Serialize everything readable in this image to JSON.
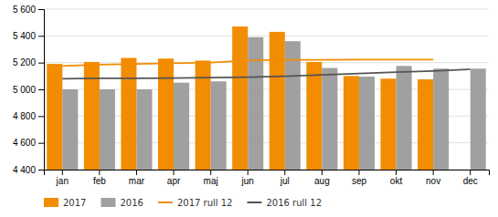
{
  "chart_data": {
    "type": "bar",
    "categories": [
      "jan",
      "feb",
      "mar",
      "apr",
      "maj",
      "jun",
      "jul",
      "aug",
      "sep",
      "okt",
      "nov",
      "dec"
    ],
    "series": [
      {
        "name": "2017",
        "type": "bar",
        "color": "#f28c00",
        "values": [
          5190,
          5205,
          5235,
          5230,
          5215,
          5470,
          5430,
          5205,
          5100,
          5080,
          5075,
          null
        ]
      },
      {
        "name": "2016",
        "type": "bar",
        "color": "#a0a0a0",
        "values": [
          5000,
          5000,
          5000,
          5050,
          5060,
          5390,
          5360,
          5160,
          5095,
          5175,
          5155,
          5155
        ]
      },
      {
        "name": "2017 rull 12",
        "type": "line",
        "color": "#f28c00",
        "values": [
          5175,
          5185,
          5190,
          5195,
          5200,
          5215,
          5220,
          5220,
          5222,
          5222,
          5222,
          null
        ]
      },
      {
        "name": "2016 rull 12",
        "type": "line",
        "color": "#555555",
        "values": [
          5080,
          5082,
          5083,
          5085,
          5088,
          5092,
          5098,
          5108,
          5118,
          5128,
          5138,
          5150
        ]
      }
    ],
    "ylim": [
      4400,
      5600
    ],
    "yticks": [
      {
        "value": 4400,
        "label": "4 400"
      },
      {
        "value": 4600,
        "label": "4 600"
      },
      {
        "value": 4800,
        "label": "4 800"
      },
      {
        "value": 5000,
        "label": "5 000"
      },
      {
        "value": 5200,
        "label": "5 200"
      },
      {
        "value": 5400,
        "label": "5 400"
      },
      {
        "value": 5600,
        "label": "5 600"
      }
    ],
    "grid": true,
    "legend": "bottom"
  }
}
